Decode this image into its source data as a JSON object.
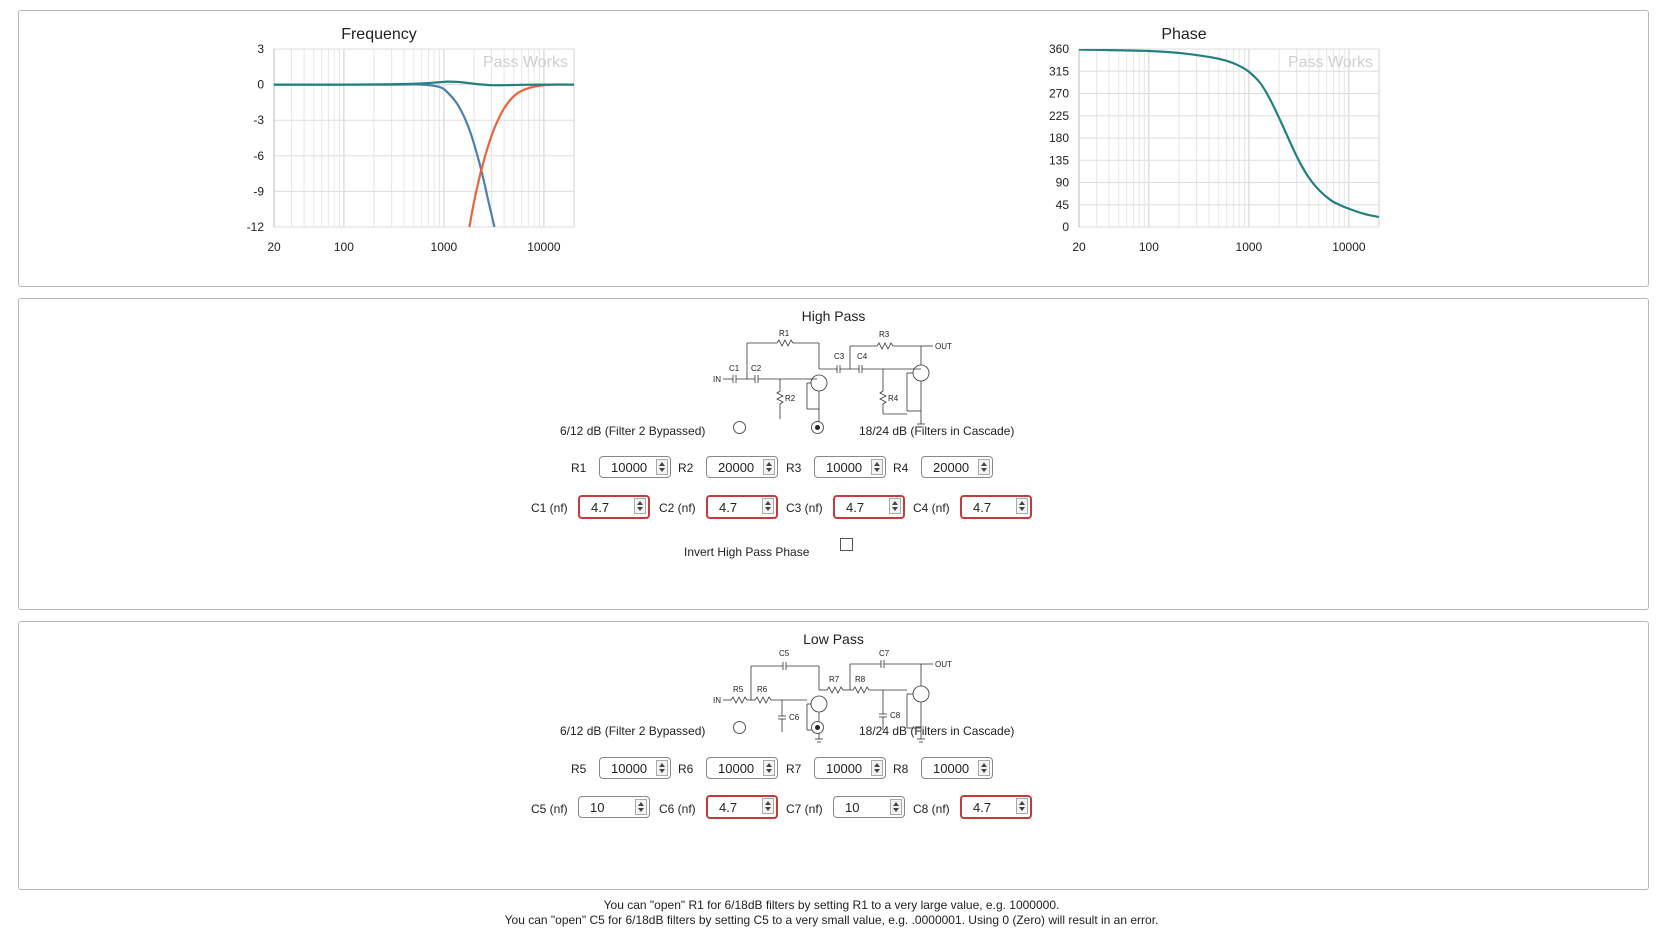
{
  "chart_data": [
    {
      "type": "line",
      "title": "Frequency",
      "watermark": "Pass Works",
      "xscale": "log",
      "xlim": [
        20,
        20000
      ],
      "ylim": [
        -12,
        3
      ],
      "x_ticks": [
        "20",
        "100",
        "1000",
        "10000"
      ],
      "y_ticks": [
        "3",
        "0",
        "-3",
        "-6",
        "-9",
        "-12"
      ],
      "grid": true,
      "series": [
        {
          "color": "#4f7fb0",
          "x": [
            20,
            100,
            300,
            600,
            900,
            1100,
            1400,
            1800,
            2300,
            2800,
            3200
          ],
          "y": [
            0,
            0,
            0,
            0,
            -0.2,
            -0.7,
            -1.8,
            -3.8,
            -6.8,
            -9.9,
            -12
          ]
        },
        {
          "color": "#e8643c",
          "x": [
            1800,
            2000,
            2400,
            3000,
            3700,
            4500,
            5500,
            7000,
            9000,
            12000,
            20000
          ],
          "y": [
            -12,
            -9.9,
            -7,
            -4.3,
            -2.5,
            -1.4,
            -0.7,
            -0.3,
            -0.1,
            0,
            0
          ]
        },
        {
          "color": "#238080",
          "x": [
            20,
            100,
            300,
            600,
            900,
            1100,
            1400,
            1800,
            2300,
            3000,
            4000,
            6000,
            10000,
            20000
          ],
          "y": [
            0,
            0,
            0.03,
            0.1,
            0.2,
            0.25,
            0.22,
            0.12,
            0.02,
            -0.05,
            -0.05,
            -0.02,
            0,
            0
          ]
        }
      ]
    },
    {
      "type": "line",
      "title": "Phase",
      "watermark": "Pass Works",
      "xscale": "log",
      "xlim": [
        20,
        20000
      ],
      "ylim": [
        0,
        360
      ],
      "x_ticks": [
        "20",
        "100",
        "1000",
        "10000"
      ],
      "y_ticks": [
        "360",
        "315",
        "270",
        "225",
        "180",
        "135",
        "90",
        "45",
        "0"
      ],
      "grid": true,
      "series": [
        {
          "color": "#238080",
          "x": [
            20,
            100,
            200,
            400,
            600,
            800,
            1000,
            1300,
            1600,
            2000,
            2400,
            2800,
            3300,
            4000,
            5000,
            6500,
            8000,
            10000,
            14000,
            20000
          ],
          "y": [
            359,
            356,
            352,
            344,
            336,
            326,
            314,
            291,
            261,
            221,
            186,
            156,
            127,
            99,
            75,
            55,
            45,
            37,
            27,
            20
          ]
        }
      ]
    }
  ],
  "high_pass": {
    "title": "High Pass",
    "schematic": {
      "in": "IN",
      "out": "OUT",
      "labels": [
        "R1",
        "C1",
        "C2",
        "R2",
        "C3",
        "C4",
        "R3",
        "R4"
      ]
    },
    "radio_12": "6/12 dB (Filter 2 Bypassed)",
    "radio_24": "18/24 dB (Filters in Cascade)",
    "selected": "18/24",
    "resistors": [
      {
        "label": "R1",
        "value": "10000"
      },
      {
        "label": "R2",
        "value": "20000"
      },
      {
        "label": "R3",
        "value": "10000"
      },
      {
        "label": "R4",
        "value": "20000"
      }
    ],
    "capacitors": [
      {
        "label": "C1 (nf)",
        "value": "4.7"
      },
      {
        "label": "C2 (nf)",
        "value": "4.7"
      },
      {
        "label": "C3 (nf)",
        "value": "4.7"
      },
      {
        "label": "C4 (nf)",
        "value": "4.7"
      }
    ],
    "invert_label": "Invert High Pass Phase"
  },
  "low_pass": {
    "title": "Low Pass",
    "schematic": {
      "in": "IN",
      "out": "OUT",
      "labels": [
        "C5",
        "R5",
        "R6",
        "C6",
        "C7",
        "R7",
        "R8",
        "C8"
      ]
    },
    "radio_12": "6/12 dB (Filter 2 Bypassed)",
    "radio_24": "18/24 dB (Filters in Cascade)",
    "selected": "18/24",
    "resistors": [
      {
        "label": "R5",
        "value": "10000"
      },
      {
        "label": "R6",
        "value": "10000"
      },
      {
        "label": "R7",
        "value": "10000"
      },
      {
        "label": "R8",
        "value": "10000"
      }
    ],
    "capacitors": [
      {
        "label": "C5 (nf)",
        "value": "10"
      },
      {
        "label": "C6 (nf)",
        "value": "4.7"
      },
      {
        "label": "C7 (nf)",
        "value": "10"
      },
      {
        "label": "C8 (nf)",
        "value": "4.7"
      }
    ]
  },
  "footnotes": [
    "You can \"open\" R1 for 6/18dB filters by setting R1 to a very large value, e.g. 1000000.",
    "You can \"open\" C5 for 6/18dB filters by setting C5 to a very small value, e.g. .0000001. Using 0 (Zero) will result in an error."
  ]
}
